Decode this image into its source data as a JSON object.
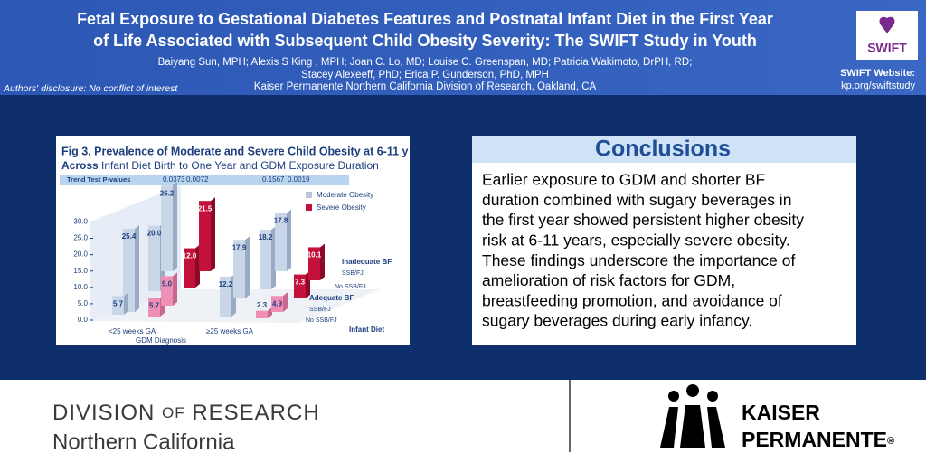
{
  "header": {
    "title_lines": [
      "Fetal Exposure to Gestational Diabetes Features and Postnatal Infant Diet in the First Year",
      "of Life Associated with Subsequent Child Obesity Severity: The SWIFT Study in Youth"
    ],
    "authors_lines": [
      "Baiyang Sun, MPH; Alexis S King , MPH; Joan C. Lo, MD; Louise C. Greenspan, MD; Patricia Wakimoto, DrPH, RD;",
      "Stacey Alexeeff, PhD; Erica P. Gunderson, PhD, MPH",
      "Kaiser Permanente Northern California Division of Research, Oakland, CA"
    ],
    "disclosure": "Authors' disclosure: No conflict of interest",
    "logo": "SWIFT",
    "website_label": "SWIFT Website:",
    "website_url": "kp.org/swiftstudy"
  },
  "figure": {
    "title": "Fig 3. Prevalence of Moderate and Severe Child Obesity at 6-11 y",
    "subtitle_lead": "Across",
    "subtitle": " Infant Diet Birth to One Year and GDM Exposure Duration",
    "pvalue_label": "Trend Test P-values",
    "pvalues": [
      "0.0373",
      "0.0072",
      "0.1567",
      "0.0019"
    ],
    "legend": [
      "Moderate Obesity",
      "Severe Obesity"
    ],
    "yticks": [
      "30.0",
      "25.0",
      "20.0",
      "15.0",
      "10.0",
      "5.0",
      "0.0"
    ],
    "bars": [
      "25.4",
      "20.0",
      "26.2",
      "5.7",
      "5.7",
      "9.0",
      "12.0",
      "21.5",
      "12.2",
      "17.9",
      "18.2",
      "17.8",
      "2.3",
      "4.9",
      "7.3",
      "10.1"
    ],
    "gdm_labels": [
      "<25 weeks GA",
      "≥25 weeks GA"
    ],
    "gdm_axis": "GDM Diagnosis",
    "diet_axis": "Infant Diet",
    "diet_labels": [
      "Inadequate BF",
      "SSB/FJ",
      "No SSB/FJ",
      "Adequate BF",
      "SSB/FJ",
      "No SSB/FJ"
    ]
  },
  "conclusions": {
    "heading": "Conclusions",
    "lines": [
      "Earlier exposure to GDM and shorter BF",
      "duration combined with sugary beverages in",
      "the first year showed persistent higher obesity",
      "risk at 6-11 years, especially severe obesity.",
      "These findings underscore the importance of",
      "amelioration of risk factors for GDM,",
      "breastfeeding promotion, and avoidance of",
      "sugary beverages during early infancy."
    ]
  },
  "footer": {
    "division": [
      "DIVISION",
      "OF",
      "RESEARCH"
    ],
    "region": "Northern California",
    "brand": [
      "KAISER",
      "PERMANENTE",
      "®"
    ]
  }
}
